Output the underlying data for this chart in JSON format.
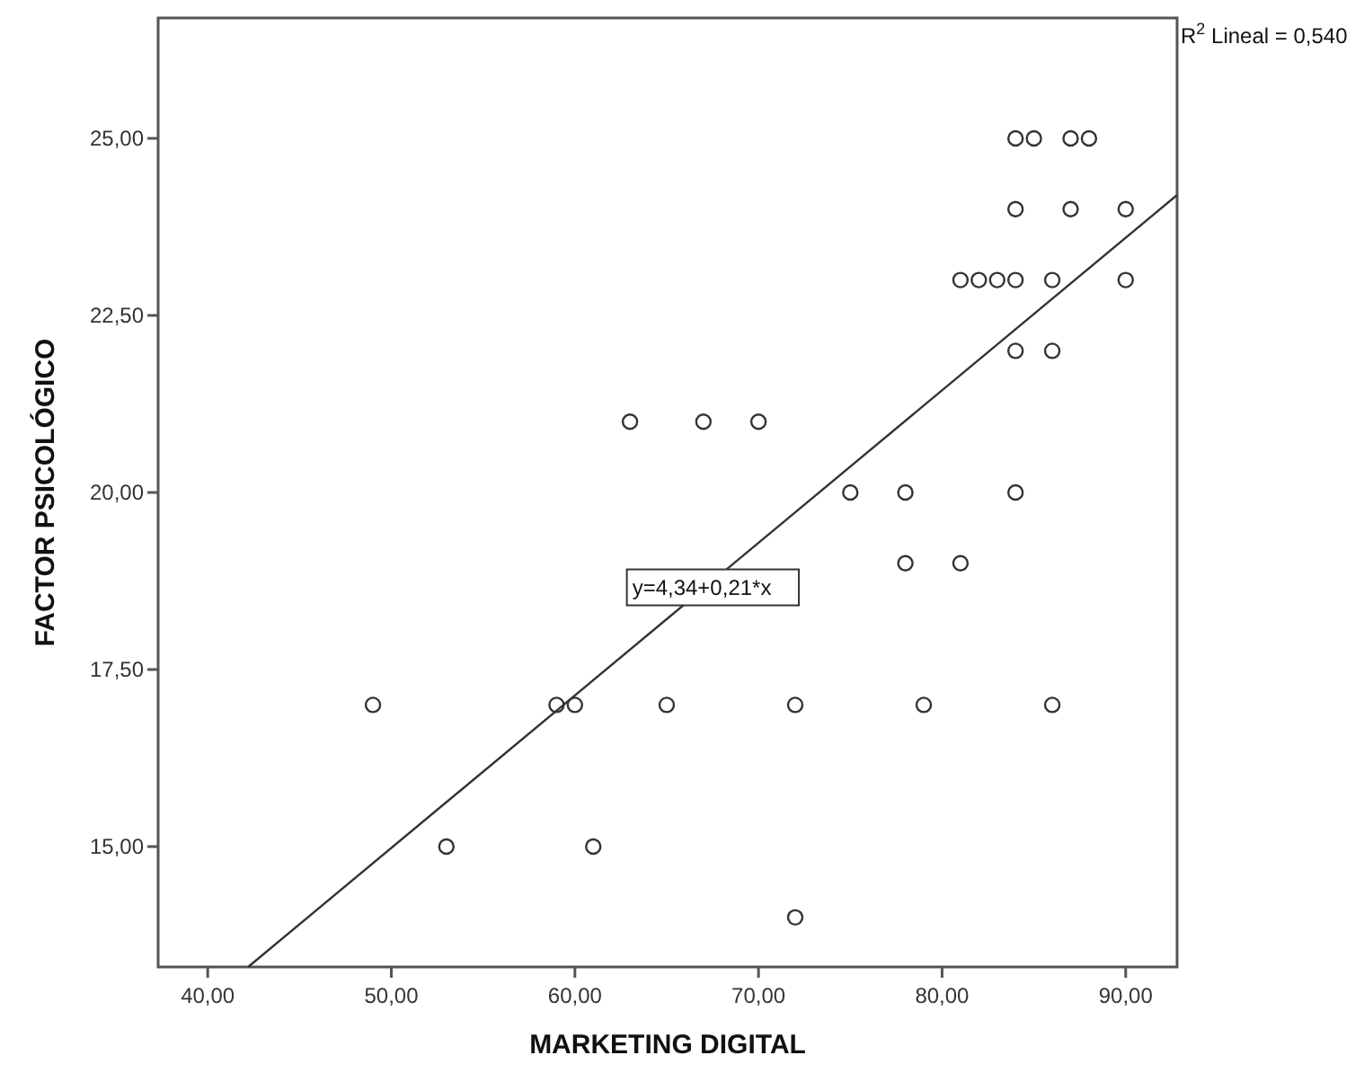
{
  "chart_data": {
    "type": "scatter",
    "xlabel": "MARKETING DIGITAL",
    "ylabel": "FACTOR PSICOLÓGICO",
    "xlim": [
      37.3,
      92.8
    ],
    "ylim": [
      13.3,
      26.7
    ],
    "xticks": [
      {
        "value": 40,
        "label": "40,00"
      },
      {
        "value": 50,
        "label": "50,00"
      },
      {
        "value": 60,
        "label": "60,00"
      },
      {
        "value": 70,
        "label": "70,00"
      },
      {
        "value": 80,
        "label": "80,00"
      },
      {
        "value": 90,
        "label": "90,00"
      }
    ],
    "yticks": [
      {
        "value": 15,
        "label": "15,00"
      },
      {
        "value": 17.5,
        "label": "17,50"
      },
      {
        "value": 20,
        "label": "20,00"
      },
      {
        "value": 22.5,
        "label": "22,50"
      },
      {
        "value": 25,
        "label": "25,00"
      }
    ],
    "grid": false,
    "series": [
      {
        "marker": "circle",
        "color": "#333333",
        "x": [
          49,
          59,
          60,
          65,
          72,
          79,
          86,
          53,
          61,
          72,
          63,
          67,
          70,
          75,
          78,
          84,
          78,
          81,
          84,
          85,
          87,
          88,
          84,
          87,
          90,
          81,
          82,
          83,
          84,
          86,
          90,
          84,
          86
        ],
        "values": [
          17,
          17,
          17,
          17,
          17,
          17,
          17,
          15,
          15,
          14,
          21,
          21,
          21,
          20,
          20,
          20,
          19,
          19,
          25,
          25,
          25,
          25,
          24,
          24,
          24,
          23,
          23,
          23,
          23,
          23,
          23,
          22,
          22
        ]
      },
      {
        "type": "line",
        "color": "#333333",
        "x": [
          42.2,
          92.8
        ],
        "values": [
          13.3,
          24.2
        ]
      }
    ],
    "annotations": [
      "R$^{2}$ Lineal = 0,540",
      "y=4,34+0,21*x"
    ]
  }
}
